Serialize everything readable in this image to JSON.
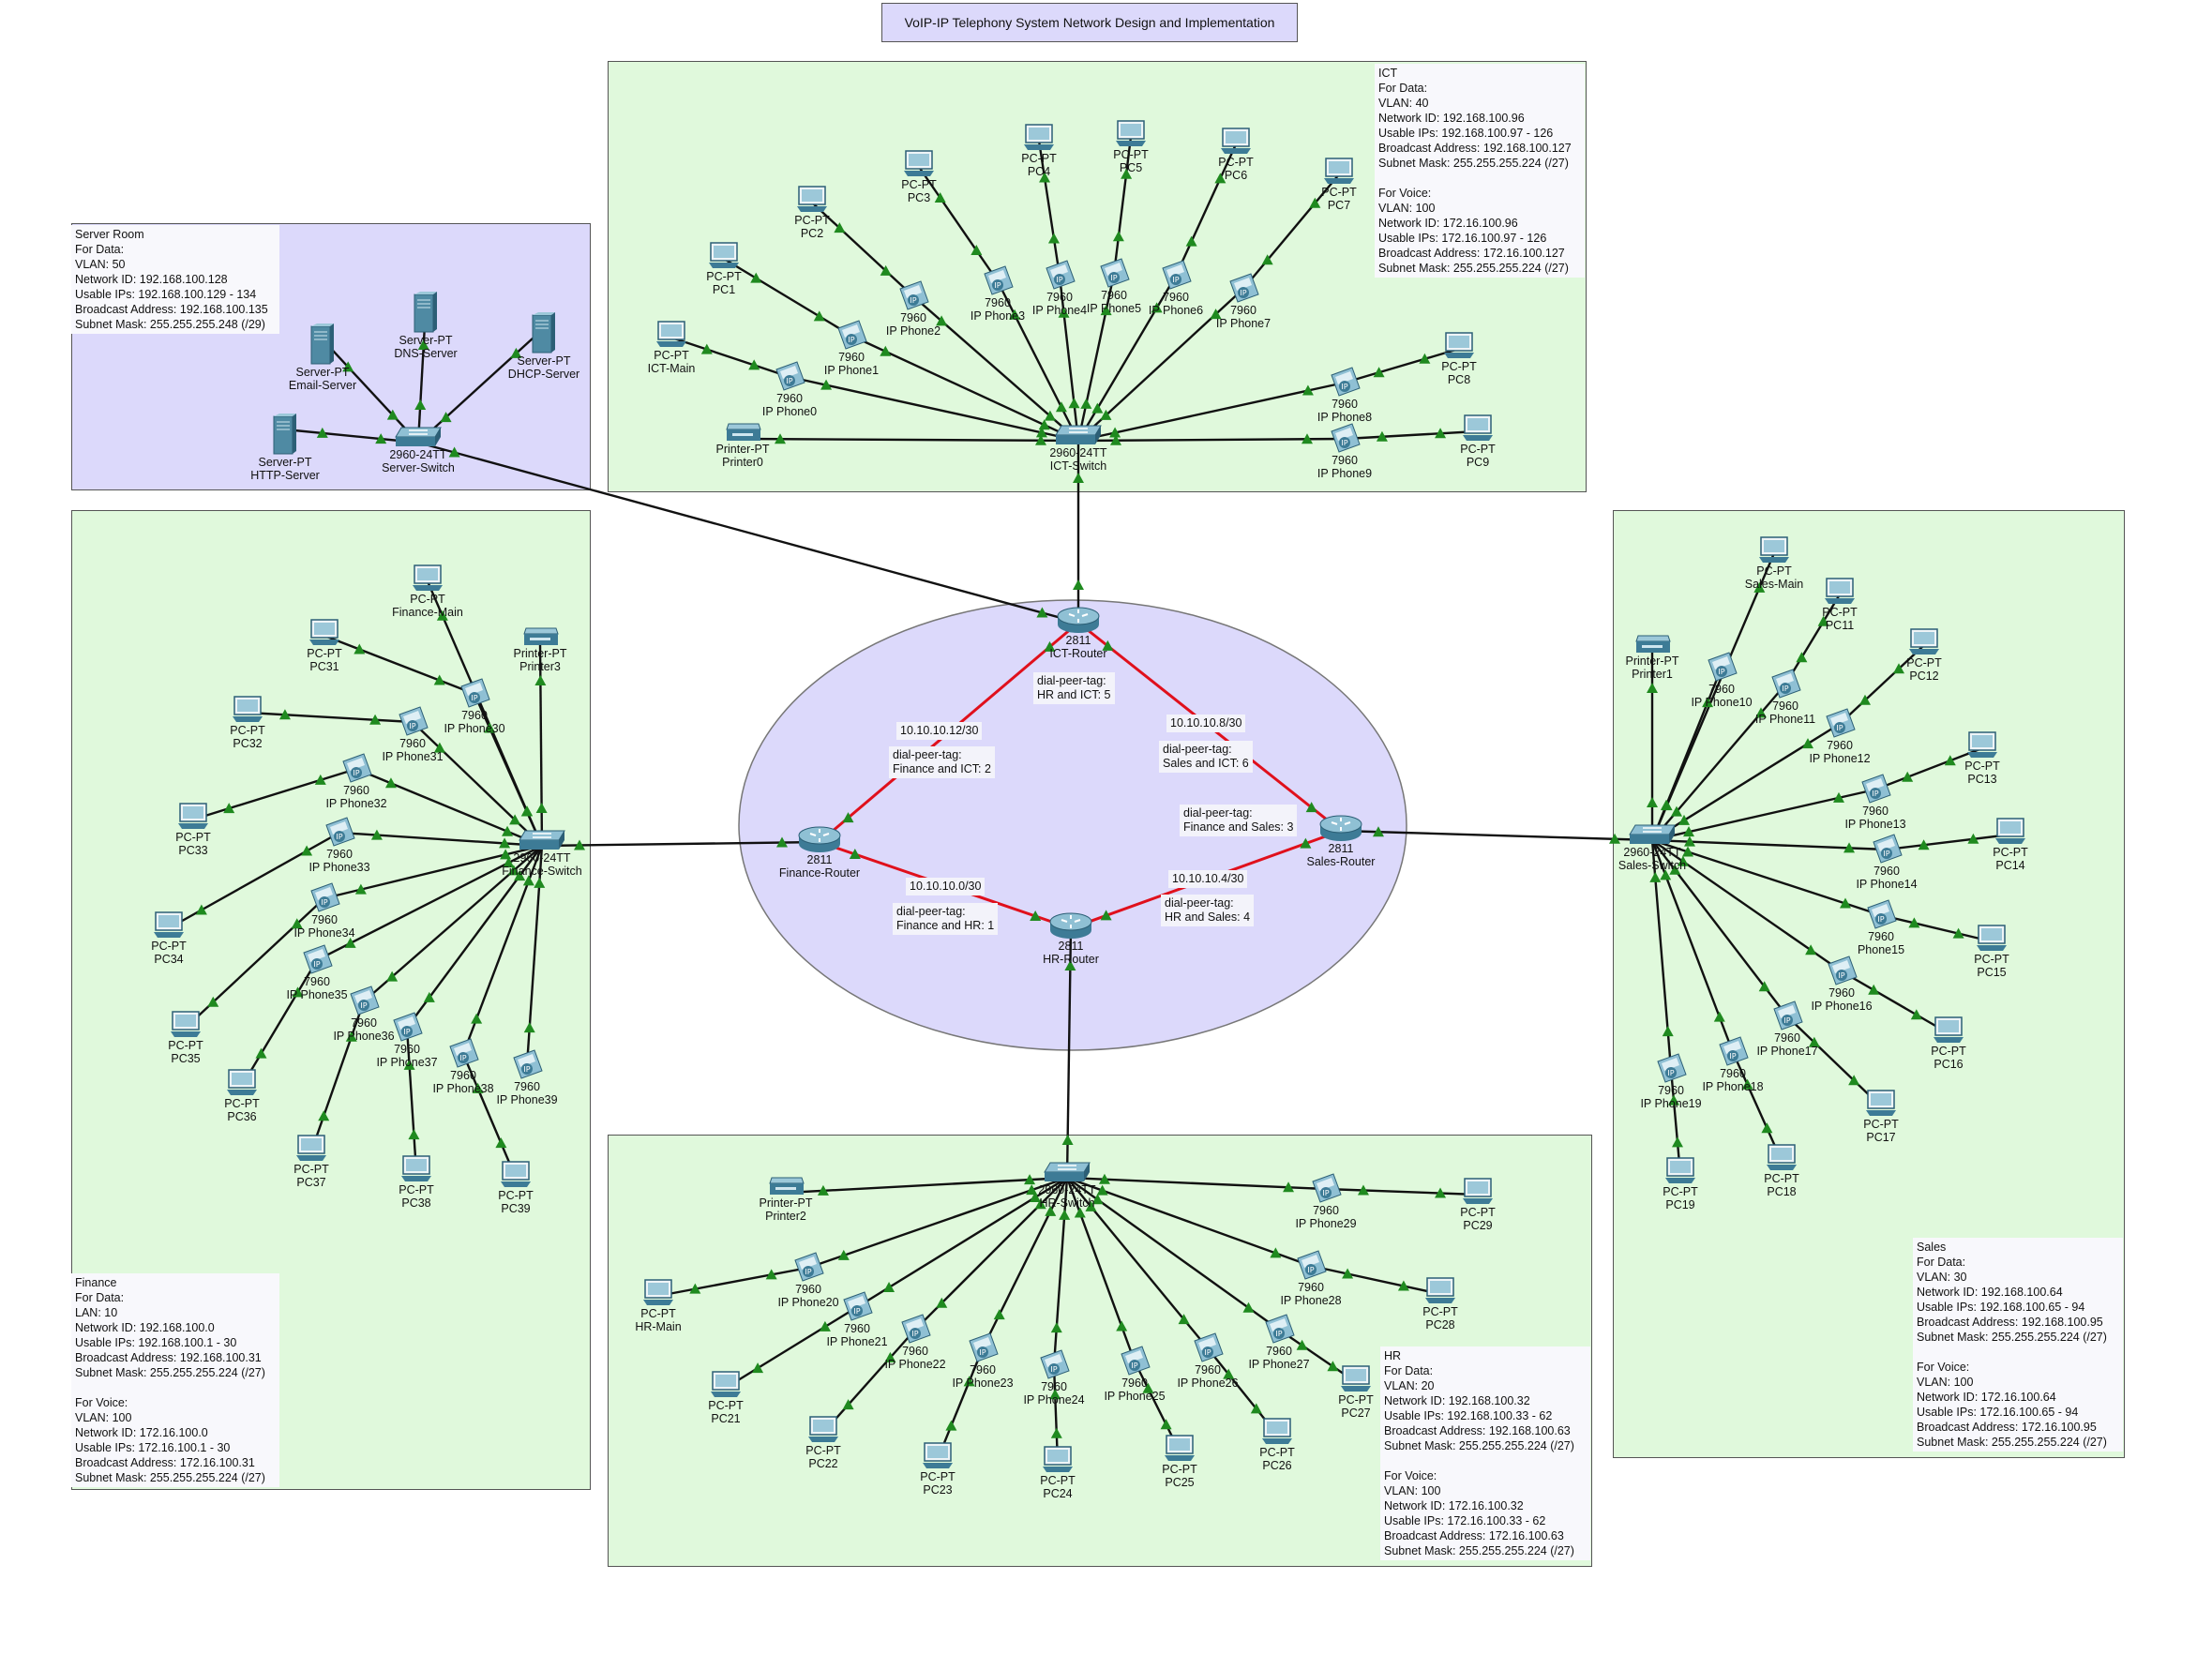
{
  "title": "VoIP-IP Telephony System Network Design and Implementation",
  "colors": {
    "zone_green": "#e0f9dc",
    "zone_purple": "#dcd9fb",
    "wan_link": "#e0101c",
    "lan_link": "#111111",
    "link_endpoint": "#1f8a1f"
  },
  "zones": {
    "server_room": {
      "info": "Server Room\nFor Data:\nVLAN: 50\nNetwork ID: 192.168.100.128\nUsable IPs: 192.168.100.129 - 134\nBroadcast Address: 192.168.100.135\nSubnet Mask: 255.255.255.248 (/29)"
    },
    "ict": {
      "info": "ICT\nFor Data:\nVLAN: 40\nNetwork ID: 192.168.100.96\nUsable IPs: 192.168.100.97 - 126\nBroadcast Address: 192.168.100.127\nSubnet Mask: 255.255.255.224 (/27)\n\nFor Voice:\nVLAN: 100\nNetwork ID: 172.16.100.96\nUsable IPs: 172.16.100.97 - 126\nBroadcast Address: 172.16.100.127\nSubnet Mask: 255.255.255.224 (/27)"
    },
    "finance": {
      "info": "Finance\nFor Data:\nLAN: 10\nNetwork ID: 192.168.100.0\nUsable IPs: 192.168.100.1 - 30\nBroadcast Address: 192.168.100.31\nSubnet Mask: 255.255.255.224 (/27)\n\nFor Voice:\nVLAN: 100\nNetwork ID: 172.16.100.0\nUsable IPs: 172.16.100.1 - 30\nBroadcast Address: 172.16.100.31\nSubnet Mask: 255.255.255.224 (/27)"
    },
    "sales": {
      "info": "Sales\nFor Data:\nVLAN: 30\nNetwork ID: 192.168.100.64\nUsable IPs: 192.168.100.65 - 94\nBroadcast Address: 192.168.100.95\nSubnet Mask: 255.255.255.224 (/27)\n\nFor Voice:\nVLAN: 100\nNetwork ID: 172.16.100.64\nUsable IPs: 172.16.100.65 - 94\nBroadcast Address: 172.16.100.95\nSubnet Mask: 255.255.255.224 (/27)"
    },
    "hr": {
      "info": "HR\nFor Data:\nVLAN: 20\nNetwork ID: 192.168.100.32\nUsable IPs: 192.168.100.33 - 62\nBroadcast Address: 192.168.100.63\nSubnet Mask: 255.255.255.224 (/27)\n\nFor Voice:\nVLAN: 100\nNetwork ID: 172.16.100.32\nUsable IPs: 172.16.100.33 - 62\nBroadcast Address: 172.16.100.63\nSubnet Mask: 255.255.255.224 (/27)"
    }
  },
  "wan_labels": {
    "fin_ict_net": "10.10.10.12/30",
    "fin_ict_tag": "dial-peer-tag:\nFinance and ICT: 2",
    "ict_hr_tag": "dial-peer-tag:\nHR and ICT: 5",
    "sales_ict_net": "10.10.10.8/30",
    "sales_ict_tag": "dial-peer-tag:\nSales and ICT: 6",
    "fin_sales_tag": "dial-peer-tag:\nFinance and Sales: 3",
    "fin_hr_net": "10.10.10.0/30",
    "fin_hr_tag": "dial-peer-tag:\nFinance and HR: 1",
    "hr_sales_net": "10.10.10.4/30",
    "hr_sales_tag": "dial-peer-tag:\nHR and Sales: 4"
  },
  "devices": {
    "ict_router": {
      "model": "2811",
      "name": "ICT-Router"
    },
    "finance_router": {
      "model": "2811",
      "name": "Finance-Router"
    },
    "sales_router": {
      "model": "2811",
      "name": "Sales-Router"
    },
    "hr_router": {
      "model": "2811",
      "name": "HR-Router"
    },
    "server_switch": {
      "model": "2960-24TT",
      "name": "Server-Switch"
    },
    "ict_switch": {
      "model": "2960-24TT",
      "name": "ICT-Switch"
    },
    "finance_switch": {
      "model": "2960-24TT",
      "name": "Finance-Switch"
    },
    "sales_switch": {
      "model": "2960-24TT",
      "name": "Sales-Switch"
    },
    "hr_switch": {
      "model": "2960-24TT",
      "name": "HR-Switch"
    },
    "email_server": {
      "model": "Server-PT",
      "name": "Email-Server"
    },
    "dns_server": {
      "model": "Server-PT",
      "name": "DNS-Server"
    },
    "dhcp_server": {
      "model": "Server-PT",
      "name": "DHCP-Server"
    },
    "http_server": {
      "model": "Server-PT",
      "name": "HTTP-Server"
    },
    "ict_main": {
      "model": "PC-PT",
      "name": "ICT-Main"
    },
    "pc1": {
      "model": "PC-PT",
      "name": "PC1"
    },
    "pc2": {
      "model": "PC-PT",
      "name": "PC2"
    },
    "pc3": {
      "model": "PC-PT",
      "name": "PC3"
    },
    "pc4": {
      "model": "PC-PT",
      "name": "PC4"
    },
    "pc5": {
      "model": "PC-PT",
      "name": "PC5"
    },
    "pc6": {
      "model": "PC-PT",
      "name": "PC6"
    },
    "pc7": {
      "model": "PC-PT",
      "name": "PC7"
    },
    "pc8": {
      "model": "PC-PT",
      "name": "PC8"
    },
    "pc9": {
      "model": "PC-PT",
      "name": "PC9"
    },
    "phone0": {
      "model": "7960",
      "name": "IP Phone0"
    },
    "phone1": {
      "model": "7960",
      "name": "IP Phone1"
    },
    "phone2": {
      "model": "7960",
      "name": "IP Phone2"
    },
    "phone3": {
      "model": "7960",
      "name": "IP Phone3"
    },
    "phone4": {
      "model": "7960",
      "name": "IP Phone4"
    },
    "phone5": {
      "model": "7960",
      "name": "IP Phone5"
    },
    "phone6": {
      "model": "7960",
      "name": "IP Phone6"
    },
    "phone7": {
      "model": "7960",
      "name": "IP Phone7"
    },
    "phone8": {
      "model": "7960",
      "name": "IP Phone8"
    },
    "phone9": {
      "model": "7960",
      "name": "IP Phone9"
    },
    "printer0": {
      "model": "Printer-PT",
      "name": "Printer0"
    },
    "finance_main": {
      "model": "PC-PT",
      "name": "Finance-Main"
    },
    "printer3": {
      "model": "Printer-PT",
      "name": "Printer3"
    },
    "pc31": {
      "model": "PC-PT",
      "name": "PC31"
    },
    "pc32": {
      "model": "PC-PT",
      "name": "PC32"
    },
    "pc33": {
      "model": "PC-PT",
      "name": "PC33"
    },
    "pc34": {
      "model": "PC-PT",
      "name": "PC34"
    },
    "pc35": {
      "model": "PC-PT",
      "name": "PC35"
    },
    "pc36": {
      "model": "PC-PT",
      "name": "PC36"
    },
    "pc37": {
      "model": "PC-PT",
      "name": "PC37"
    },
    "pc38": {
      "model": "PC-PT",
      "name": "PC38"
    },
    "pc39": {
      "model": "PC-PT",
      "name": "PC39"
    },
    "phone30": {
      "model": "7960",
      "name": "IP Phone30"
    },
    "phone31": {
      "model": "7960",
      "name": "IP Phone31"
    },
    "phone32": {
      "model": "7960",
      "name": "IP Phone32"
    },
    "phone33": {
      "model": "7960",
      "name": "IP Phone33"
    },
    "phone34": {
      "model": "7960",
      "name": "IP Phone34"
    },
    "phone35": {
      "model": "7960",
      "name": "IP Phone35"
    },
    "phone36": {
      "model": "7960",
      "name": "IP Phone36"
    },
    "phone37": {
      "model": "7960",
      "name": "IP Phone37"
    },
    "phone38": {
      "model": "7960",
      "name": "IP Phone38"
    },
    "phone39": {
      "model": "7960",
      "name": "IP Phone39"
    },
    "sales_main": {
      "model": "PC-PT",
      "name": "Sales-Main"
    },
    "printer1": {
      "model": "Printer-PT",
      "name": "Printer1"
    },
    "pc11": {
      "model": "PC-PT",
      "name": "PC11"
    },
    "pc12": {
      "model": "PC-PT",
      "name": "PC12"
    },
    "pc13": {
      "model": "PC-PT",
      "name": "PC13"
    },
    "pc14": {
      "model": "PC-PT",
      "name": "PC14"
    },
    "pc15": {
      "model": "PC-PT",
      "name": "PC15"
    },
    "pc16": {
      "model": "PC-PT",
      "name": "PC16"
    },
    "pc17": {
      "model": "PC-PT",
      "name": "PC17"
    },
    "pc18": {
      "model": "PC-PT",
      "name": "PC18"
    },
    "pc19": {
      "model": "PC-PT",
      "name": "PC19"
    },
    "phone10": {
      "model": "7960",
      "name": "IP Phone10"
    },
    "phone11": {
      "model": "7960",
      "name": "IP Phone11"
    },
    "phone12": {
      "model": "7960",
      "name": "IP Phone12"
    },
    "phone13": {
      "model": "7960",
      "name": "IP Phone13"
    },
    "phone14": {
      "model": "7960",
      "name": "IP Phone14"
    },
    "phone15": {
      "model": "7960",
      "name": "Phone15"
    },
    "phone16": {
      "model": "7960",
      "name": "IP Phone16"
    },
    "phone17": {
      "model": "7960",
      "name": "IP Phone17"
    },
    "phone18": {
      "model": "7960",
      "name": "IP Phone18"
    },
    "phone19": {
      "model": "7960",
      "name": "IP Phone19"
    },
    "hr_main": {
      "model": "PC-PT",
      "name": "HR-Main"
    },
    "printer2": {
      "model": "Printer-PT",
      "name": "Printer2"
    },
    "pc21": {
      "model": "PC-PT",
      "name": "PC21"
    },
    "pc22": {
      "model": "PC-PT",
      "name": "PC22"
    },
    "pc23": {
      "model": "PC-PT",
      "name": "PC23"
    },
    "pc24": {
      "model": "PC-PT",
      "name": "PC24"
    },
    "pc25": {
      "model": "PC-PT",
      "name": "PC25"
    },
    "pc26": {
      "model": "PC-PT",
      "name": "PC26"
    },
    "pc27": {
      "model": "PC-PT",
      "name": "PC27"
    },
    "pc28": {
      "model": "PC-PT",
      "name": "PC28"
    },
    "pc29": {
      "model": "PC-PT",
      "name": "PC29"
    },
    "phone20": {
      "model": "7960",
      "name": "IP Phone20"
    },
    "phone21": {
      "model": "7960",
      "name": "IP Phone21"
    },
    "phone22": {
      "model": "7960",
      "name": "IP Phone22"
    },
    "phone23": {
      "model": "7960",
      "name": "IP Phone23"
    },
    "phone24": {
      "model": "7960",
      "name": "IP Phone24"
    },
    "phone25": {
      "model": "7960",
      "name": "IP Phone25"
    },
    "phone26": {
      "model": "7960",
      "name": "IP Phone26"
    },
    "phone27": {
      "model": "7960",
      "name": "IP Phone27"
    },
    "phone28": {
      "model": "7960",
      "name": "IP Phone28"
    },
    "phone29": {
      "model": "7960",
      "name": "IP Phone29"
    }
  },
  "links": {
    "wan": [
      [
        "ict_router",
        "finance_router"
      ],
      [
        "ict_router",
        "sales_router"
      ],
      [
        "finance_router",
        "hr_router"
      ],
      [
        "hr_router",
        "sales_router"
      ]
    ],
    "lan": [
      [
        "ict_router",
        "ict_switch"
      ],
      [
        "ict_router",
        "server_switch"
      ],
      [
        "finance_router",
        "finance_switch"
      ],
      [
        "sales_router",
        "sales_switch"
      ],
      [
        "hr_router",
        "hr_switch"
      ],
      [
        "server_switch",
        "email_server"
      ],
      [
        "server_switch",
        "dns_server"
      ],
      [
        "server_switch",
        "dhcp_server"
      ],
      [
        "server_switch",
        "http_server"
      ],
      [
        "ict_switch",
        "printer0"
      ],
      [
        "ict_switch",
        "phone0"
      ],
      [
        "ict_switch",
        "phone1"
      ],
      [
        "ict_switch",
        "phone2"
      ],
      [
        "ict_switch",
        "phone3"
      ],
      [
        "ict_switch",
        "phone4"
      ],
      [
        "ict_switch",
        "phone5"
      ],
      [
        "ict_switch",
        "phone6"
      ],
      [
        "ict_switch",
        "phone7"
      ],
      [
        "ict_switch",
        "phone8"
      ],
      [
        "ict_switch",
        "phone9"
      ],
      [
        "phone0",
        "ict_main"
      ],
      [
        "phone1",
        "pc1"
      ],
      [
        "phone2",
        "pc2"
      ],
      [
        "phone3",
        "pc3"
      ],
      [
        "phone4",
        "pc4"
      ],
      [
        "phone5",
        "pc5"
      ],
      [
        "phone6",
        "pc6"
      ],
      [
        "phone7",
        "pc7"
      ],
      [
        "phone8",
        "pc8"
      ],
      [
        "phone9",
        "pc9"
      ],
      [
        "finance_switch",
        "finance_main"
      ],
      [
        "finance_switch",
        "printer3"
      ],
      [
        "finance_switch",
        "phone30"
      ],
      [
        "finance_switch",
        "phone31"
      ],
      [
        "finance_switch",
        "phone32"
      ],
      [
        "finance_switch",
        "phone33"
      ],
      [
        "finance_switch",
        "phone34"
      ],
      [
        "finance_switch",
        "phone35"
      ],
      [
        "finance_switch",
        "phone36"
      ],
      [
        "finance_switch",
        "phone37"
      ],
      [
        "finance_switch",
        "phone38"
      ],
      [
        "finance_switch",
        "phone39"
      ],
      [
        "phone30",
        "pc31"
      ],
      [
        "phone31",
        "pc32"
      ],
      [
        "phone32",
        "pc33"
      ],
      [
        "phone33",
        "pc34"
      ],
      [
        "phone34",
        "pc35"
      ],
      [
        "phone35",
        "pc36"
      ],
      [
        "phone36",
        "pc37"
      ],
      [
        "phone37",
        "pc38"
      ],
      [
        "phone38",
        "pc39"
      ],
      [
        "sales_switch",
        "sales_main"
      ],
      [
        "sales_switch",
        "printer1"
      ],
      [
        "sales_switch",
        "phone10"
      ],
      [
        "sales_switch",
        "phone11"
      ],
      [
        "sales_switch",
        "phone12"
      ],
      [
        "sales_switch",
        "phone13"
      ],
      [
        "sales_switch",
        "phone14"
      ],
      [
        "sales_switch",
        "phone15"
      ],
      [
        "sales_switch",
        "phone16"
      ],
      [
        "sales_switch",
        "phone17"
      ],
      [
        "sales_switch",
        "phone18"
      ],
      [
        "sales_switch",
        "phone19"
      ],
      [
        "phone11",
        "pc11"
      ],
      [
        "phone12",
        "pc12"
      ],
      [
        "phone13",
        "pc13"
      ],
      [
        "phone14",
        "pc14"
      ],
      [
        "phone15",
        "pc15"
      ],
      [
        "phone16",
        "pc16"
      ],
      [
        "phone17",
        "pc17"
      ],
      [
        "phone18",
        "pc18"
      ],
      [
        "phone19",
        "pc19"
      ],
      [
        "hr_switch",
        "printer2"
      ],
      [
        "hr_switch",
        "phone20"
      ],
      [
        "hr_switch",
        "phone21"
      ],
      [
        "hr_switch",
        "phone22"
      ],
      [
        "hr_switch",
        "phone23"
      ],
      [
        "hr_switch",
        "phone24"
      ],
      [
        "hr_switch",
        "phone25"
      ],
      [
        "hr_switch",
        "phone26"
      ],
      [
        "hr_switch",
        "phone27"
      ],
      [
        "hr_switch",
        "phone28"
      ],
      [
        "hr_switch",
        "phone29"
      ],
      [
        "phone20",
        "hr_main"
      ],
      [
        "phone21",
        "pc21"
      ],
      [
        "phone22",
        "pc22"
      ],
      [
        "phone23",
        "pc23"
      ],
      [
        "phone24",
        "pc24"
      ],
      [
        "phone25",
        "pc25"
      ],
      [
        "phone26",
        "pc26"
      ],
      [
        "phone27",
        "pc27"
      ],
      [
        "phone28",
        "pc28"
      ],
      [
        "phone29",
        "pc29"
      ]
    ]
  }
}
